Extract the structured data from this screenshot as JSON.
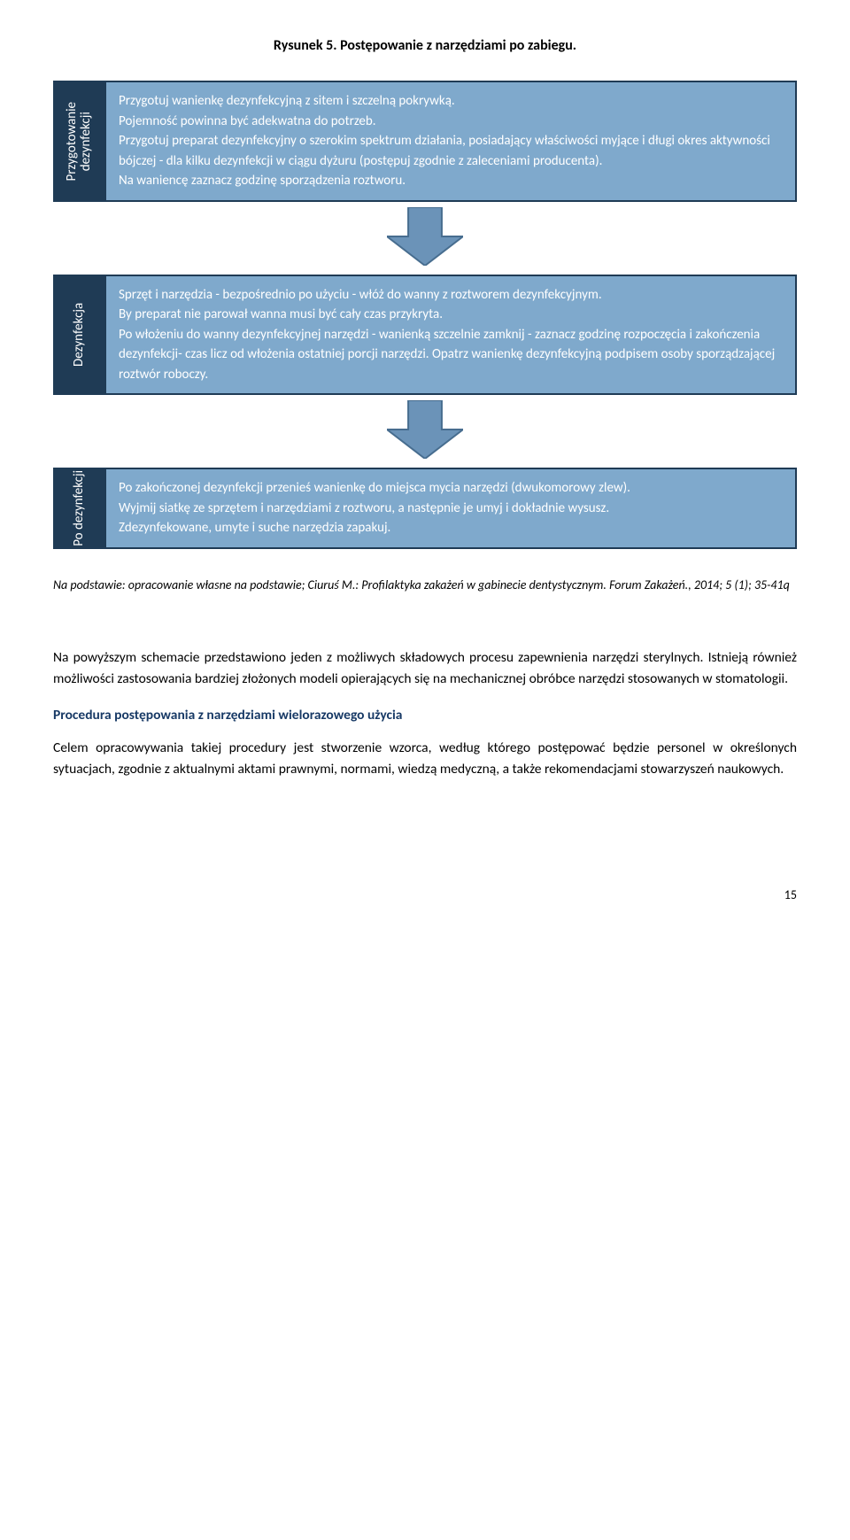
{
  "figure_title": "Rysunek 5. Postępowanie z narzędziami po zabiegu.",
  "stages": [
    {
      "label": "Przygotowanie\ndezynfekcji",
      "content": "Przygotuj wanienkę dezynfekcyjną z sitem i szczelną pokrywką.\nPojemność powinna być adekwatna do potrzeb.\nPrzygotuj preparat dezynfekcyjny o szerokim spektrum działania, posiadający właściwości myjące i długi okres aktywności bójczej - dla kilku dezynfekcji w ciągu dyżuru (postępuj zgodnie z zaleceniami producenta).\nNa waniencę zaznacz godzinę sporządzenia roztworu."
    },
    {
      "label": "Dezynfekcja",
      "content": "Sprzęt i narzędzia - bezpośrednio po użyciu - włóż do wanny z roztworem dezynfekcyjnym.\nBy preparat nie parował wanna musi być cały czas przykryta.\nPo włożeniu do wanny dezynfekcyjnej narzędzi - wanienką szczelnie zamknij - zaznacz godzinę rozpoczęcia i zakończenia dezynfekcji- czas licz od włożenia ostatniej porcji narzędzi. Opatrz wanienkę dezynfekcyjną podpisem osoby sporządzającej roztwór roboczy."
    },
    {
      "label": "Po dezynfekcji",
      "content": "Po zakończonej dezynfekcji przenieś wanienkę do miejsca mycia narzędzi (dwukomorowy zlew).\nWyjmij siatkę ze sprzętem i narzędziami z roztworu, a następnie je umyj i dokładnie wysusz.\nZdezynfekowane, umyte i suche narzędzia zapakuj."
    }
  ],
  "arrow": {
    "fill": "#6b93b8",
    "stroke": "#476d8f",
    "width": 86,
    "height": 66
  },
  "colors": {
    "stage_label_bg": "#1f3b55",
    "stage_content_bg": "#7fa9cc",
    "heading_color": "#183a66"
  },
  "source_note": "Na podstawie: opracowanie własne na podstawie; Ciuruś M.: Profilaktyka zakażeń w gabinecie dentystycznym. Forum Zakażeń., 2014; 5 (1); 35-41q",
  "body_para_1": "Na powyższym schemacie przedstawiono jeden z możliwych składowych procesu zapewnienia narzędzi sterylnych. Istnieją również możliwości zastosowania bardziej złożonych modeli opierających się na mechanicznej obróbce narzędzi stosowanych w stomatologii.",
  "section_heading": "Procedura postępowania z narzędziami wielorazowego użycia",
  "body_para_2": "Celem opracowywania takiej procedury jest stworzenie wzorca, według którego postępować będzie personel w określonych sytuacjach, zgodnie z aktualnymi aktami prawnymi, normami, wiedzą medyczną, a także rekomendacjami stowarzyszeń naukowych.",
  "page_number": "15"
}
